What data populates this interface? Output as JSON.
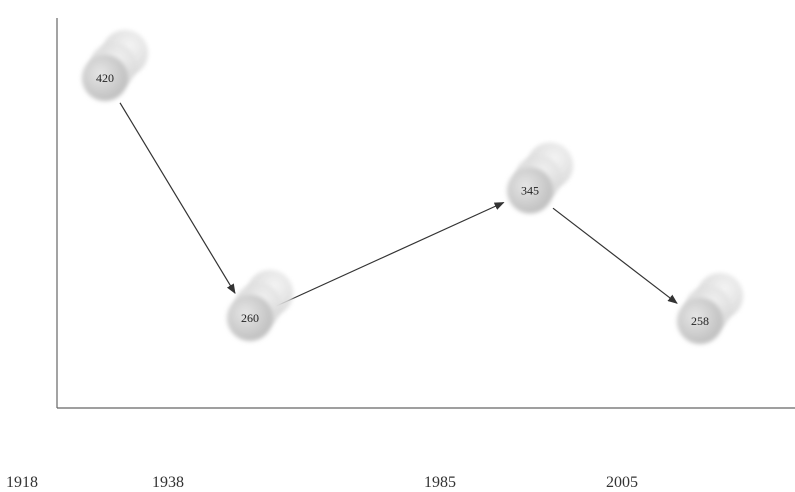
{
  "chart_data": {
    "type": "line",
    "x": [
      "1918",
      "1938",
      "1985",
      "2005"
    ],
    "values": [
      420,
      260,
      345,
      258
    ],
    "value_labels": [
      "420",
      "260",
      "345",
      "258"
    ],
    "xlabel": "",
    "ylabel": "",
    "ylim": [
      200,
      460
    ],
    "grid": false,
    "colors": {
      "marker": "#c9c9c9",
      "marker_shadow": "#dcdcdc",
      "arrow": "#333333",
      "axis": "#666666"
    }
  }
}
